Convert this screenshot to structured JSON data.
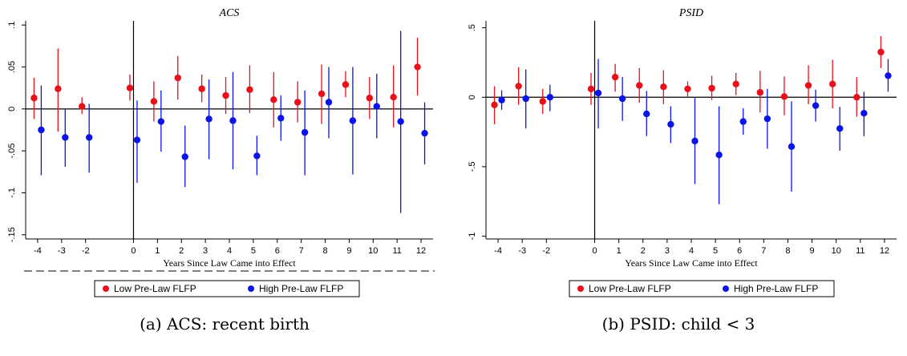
{
  "colors": {
    "low": "#e8101b",
    "high": "#0a14e6",
    "axis": "#000000"
  },
  "chart_data": [
    {
      "type": "scatter",
      "title": "ACS",
      "xlabel": "Years Since Law Came into Effect",
      "caption": "(a) ACS: recent birth",
      "xlim": [
        -4.5,
        12.5
      ],
      "ylim": [
        -0.155,
        0.105
      ],
      "x_ticks": [
        -4,
        -3,
        -2,
        0,
        1,
        2,
        3,
        4,
        5,
        6,
        7,
        8,
        9,
        10,
        11,
        12
      ],
      "y_ticks": [
        0.1,
        0.05,
        0,
        -0.05,
        -0.1,
        -0.15
      ],
      "y_tick_labels": [
        ".1",
        ".05",
        "0",
        "-.05",
        "-.1",
        "-.15"
      ],
      "event_line_x": 0,
      "legend": [
        "Low Pre-Law FLFP",
        "High Pre-Law FLFP"
      ],
      "series": [
        {
          "name": "Low Pre-Law FLFP",
          "x": [
            -4,
            -3,
            -2,
            0,
            1,
            2,
            3,
            4,
            5,
            6,
            7,
            8,
            9,
            10,
            11,
            12
          ],
          "y": [
            0.013,
            0.024,
            0.003,
            0.025,
            0.009,
            0.037,
            0.024,
            0.016,
            0.023,
            0.011,
            0.008,
            0.018,
            0.029,
            0.013,
            0.014,
            0.05
          ],
          "ci_low": [
            -0.012,
            -0.027,
            -0.006,
            0.01,
            -0.015,
            0.011,
            0.008,
            -0.006,
            -0.005,
            -0.022,
            -0.016,
            -0.018,
            0.014,
            -0.012,
            -0.022,
            0.016
          ],
          "ci_high": [
            0.037,
            0.072,
            0.014,
            0.041,
            0.033,
            0.063,
            0.041,
            0.038,
            0.052,
            0.044,
            0.033,
            0.053,
            0.045,
            0.038,
            0.052,
            0.085
          ]
        },
        {
          "name": "High Pre-Law FLFP",
          "x": [
            -4,
            -3,
            -2,
            0,
            1,
            2,
            3,
            4,
            5,
            6,
            7,
            8,
            9,
            10,
            11,
            12
          ],
          "y": [
            -0.025,
            -0.034,
            -0.034,
            -0.037,
            -0.015,
            -0.057,
            -0.012,
            -0.014,
            -0.056,
            -0.011,
            -0.028,
            0.008,
            -0.014,
            0.003,
            -0.015,
            -0.029
          ],
          "ci_low": [
            -0.079,
            -0.069,
            -0.076,
            -0.088,
            -0.051,
            -0.093,
            -0.06,
            -0.072,
            -0.079,
            -0.038,
            -0.079,
            -0.035,
            -0.078,
            -0.035,
            -0.124,
            -0.066
          ],
          "ci_high": [
            0.028,
            0.0,
            0.006,
            0.01,
            0.022,
            -0.02,
            0.035,
            0.044,
            -0.032,
            0.016,
            0.022,
            0.05,
            0.05,
            0.042,
            0.093,
            0.008
          ]
        }
      ]
    },
    {
      "type": "scatter",
      "title": "PSID",
      "xlabel": "Years Since Law Came into Effect",
      "caption": "(b) PSID: child < 3",
      "xlim": [
        -4.5,
        12.5
      ],
      "ylim": [
        -1.02,
        0.55
      ],
      "x_ticks": [
        -4,
        -3,
        -2,
        0,
        1,
        2,
        3,
        4,
        5,
        6,
        7,
        8,
        9,
        10,
        11,
        12
      ],
      "y_ticks": [
        0.5,
        0,
        -0.5,
        -1
      ],
      "y_tick_labels": [
        ".5",
        "0",
        "-.5",
        "-1"
      ],
      "event_line_x": 0,
      "legend": [
        "Low Pre-Law FLFP",
        "High Pre-Law FLFP"
      ],
      "series": [
        {
          "name": "Low Pre-Law FLFP",
          "x": [
            -4,
            -3,
            -2,
            0,
            1,
            2,
            3,
            4,
            5,
            6,
            7,
            8,
            9,
            10,
            11,
            12
          ],
          "y": [
            -0.055,
            0.08,
            -0.03,
            0.06,
            0.145,
            0.085,
            0.075,
            0.06,
            0.065,
            0.095,
            0.035,
            0.005,
            0.085,
            0.095,
            0.0,
            0.325
          ],
          "ci_low": [
            -0.195,
            -0.055,
            -0.12,
            -0.055,
            0.04,
            -0.04,
            -0.05,
            0.0,
            -0.02,
            0.015,
            -0.11,
            -0.13,
            -0.05,
            -0.08,
            -0.14,
            0.21
          ],
          "ci_high": [
            0.08,
            0.215,
            0.06,
            0.175,
            0.24,
            0.21,
            0.195,
            0.115,
            0.155,
            0.175,
            0.19,
            0.15,
            0.23,
            0.27,
            0.145,
            0.44
          ]
        },
        {
          "name": "High Pre-Law FLFP",
          "x": [
            -4,
            -3,
            -2,
            0,
            1,
            2,
            3,
            4,
            5,
            6,
            7,
            8,
            9,
            10,
            11,
            12
          ],
          "y": [
            -0.02,
            -0.01,
            0.0,
            0.03,
            -0.01,
            -0.12,
            -0.195,
            -0.315,
            -0.415,
            -0.175,
            -0.155,
            -0.355,
            -0.06,
            -0.225,
            -0.115,
            0.155
          ],
          "ci_low": [
            -0.09,
            -0.225,
            -0.1,
            -0.225,
            -0.17,
            -0.28,
            -0.33,
            -0.625,
            -0.77,
            -0.27,
            -0.37,
            -0.68,
            -0.175,
            -0.385,
            -0.28,
            0.04
          ],
          "ci_high": [
            0.05,
            0.2,
            0.09,
            0.275,
            0.145,
            0.045,
            -0.065,
            -0.005,
            -0.065,
            -0.08,
            0.06,
            -0.03,
            0.055,
            -0.07,
            0.04,
            0.275
          ]
        }
      ]
    }
  ]
}
